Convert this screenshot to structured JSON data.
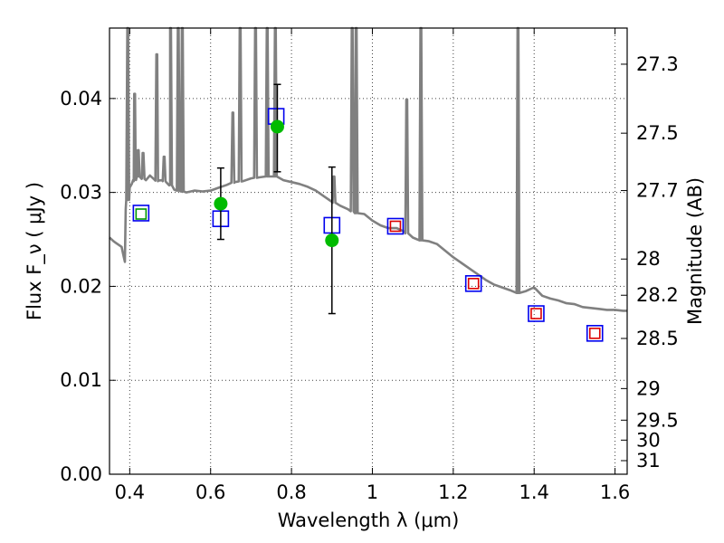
{
  "chart_data": {
    "type": "scatter",
    "xlabel": "Wavelength  λ (μm)",
    "ylabel_left": "Flux  F_ν  ( μJy )",
    "ylabel_right": "Magnitude (AB)",
    "xlim": [
      0.35,
      1.63
    ],
    "ylim": [
      0.0,
      0.0475
    ],
    "x_ticks": [
      0.4,
      0.6,
      0.8,
      1.0,
      1.2,
      1.4,
      1.6
    ],
    "x_tick_labels": [
      "0.4",
      "0.6",
      "0.8",
      "1",
      "1.2",
      "1.4",
      "1.6"
    ],
    "y_ticks": [
      0.0,
      0.01,
      0.02,
      0.03,
      0.04
    ],
    "y_tick_labels": [
      "0.00",
      "0.01",
      "0.02",
      "0.03",
      "0.04"
    ],
    "right_ticks": [
      {
        "label": "27.3",
        "value": 27.3
      },
      {
        "label": "27.5",
        "value": 27.5
      },
      {
        "label": "27.7",
        "value": 27.7
      },
      {
        "label": "28",
        "value": 28.0
      },
      {
        "label": "28.2",
        "value": 28.2
      },
      {
        "label": "28.5",
        "value": 28.5
      },
      {
        "label": "29",
        "value": 29.0
      },
      {
        "label": "29.5",
        "value": 29.5
      },
      {
        "label": "30",
        "value": 30.0
      },
      {
        "label": "31",
        "value": 31.0
      }
    ],
    "grid": true,
    "colors": {
      "model": "#808080",
      "observed": "#00bb00",
      "blue_box": "#0000ee",
      "green_box": "#009900",
      "red_box": "#dd0000",
      "errorbar": "#000000"
    },
    "series": [
      {
        "kind": "model_spectrum",
        "x": [
          0.35,
          0.36,
          0.37,
          0.38,
          0.385,
          0.388,
          0.39,
          0.395,
          0.4,
          0.405,
          0.41,
          0.415,
          0.42,
          0.43,
          0.44,
          0.45,
          0.46,
          0.47,
          0.48,
          0.49,
          0.5,
          0.51,
          0.52,
          0.53,
          0.54,
          0.55,
          0.56,
          0.58,
          0.6,
          0.62,
          0.64,
          0.66,
          0.68,
          0.7,
          0.72,
          0.74,
          0.76,
          0.78,
          0.8,
          0.82,
          0.84,
          0.86,
          0.88,
          0.9,
          0.92,
          0.94,
          0.96,
          0.98,
          1.0,
          1.02,
          1.04,
          1.06,
          1.08,
          1.1,
          1.12,
          1.14,
          1.16,
          1.18,
          1.2,
          1.22,
          1.24,
          1.26,
          1.28,
          1.3,
          1.32,
          1.34,
          1.36,
          1.38,
          1.4,
          1.42,
          1.44,
          1.46,
          1.48,
          1.5,
          1.52,
          1.54,
          1.56,
          1.58,
          1.6,
          1.62,
          1.63
        ],
        "y": [
          0.0252,
          0.0248,
          0.0245,
          0.0242,
          0.0232,
          0.0226,
          0.0282,
          0.0292,
          0.0305,
          0.0309,
          0.0312,
          0.0315,
          0.0317,
          0.0315,
          0.0313,
          0.0318,
          0.0314,
          0.0312,
          0.0313,
          0.0311,
          0.0308,
          0.0303,
          0.0302,
          0.0301,
          0.03,
          0.0301,
          0.0302,
          0.0301,
          0.0302,
          0.0305,
          0.0308,
          0.0311,
          0.0312,
          0.0315,
          0.0316,
          0.0317,
          0.0317,
          0.0313,
          0.0311,
          0.0309,
          0.0306,
          0.0302,
          0.0296,
          0.029,
          0.0286,
          0.0282,
          0.0278,
          0.0277,
          0.027,
          0.0265,
          0.0262,
          0.0262,
          0.0258,
          0.0252,
          0.0249,
          0.0248,
          0.0245,
          0.0238,
          0.0231,
          0.0225,
          0.0219,
          0.0213,
          0.0207,
          0.0202,
          0.0199,
          0.0196,
          0.0193,
          0.0195,
          0.0199,
          0.019,
          0.0187,
          0.0185,
          0.0182,
          0.0181,
          0.0178,
          0.0177,
          0.0176,
          0.0175,
          0.0175,
          0.0174,
          0.0174
        ]
      },
      {
        "kind": "model_spectrum_lines",
        "lines": [
          {
            "x": 0.395,
            "peak": 0.048
          },
          {
            "x": 0.412,
            "peak": 0.0405
          },
          {
            "x": 0.421,
            "peak": 0.0345
          },
          {
            "x": 0.433,
            "peak": 0.0342
          },
          {
            "x": 0.467,
            "peak": 0.0447
          },
          {
            "x": 0.485,
            "peak": 0.0338
          },
          {
            "x": 0.501,
            "peak": 0.048
          },
          {
            "x": 0.52,
            "peak": 0.048
          },
          {
            "x": 0.53,
            "peak": 0.048
          },
          {
            "x": 0.655,
            "peak": 0.0385
          },
          {
            "x": 0.673,
            "peak": 0.048
          },
          {
            "x": 0.711,
            "peak": 0.048
          },
          {
            "x": 0.74,
            "peak": 0.048
          },
          {
            "x": 0.76,
            "peak": 0.048
          },
          {
            "x": 0.905,
            "peak": 0.0317
          },
          {
            "x": 0.95,
            "peak": 0.048
          },
          {
            "x": 0.96,
            "peak": 0.048
          },
          {
            "x": 1.085,
            "peak": 0.0399
          },
          {
            "x": 1.12,
            "peak": 0.048
          },
          {
            "x": 1.36,
            "peak": 0.048
          }
        ]
      },
      {
        "kind": "blue_boxes",
        "x": [
          0.428,
          0.625,
          0.762,
          0.9,
          1.057,
          1.25,
          1.405,
          1.55
        ],
        "y": [
          0.0278,
          0.0272,
          0.0381,
          0.0265,
          0.0264,
          0.0203,
          0.0171,
          0.015
        ]
      },
      {
        "kind": "green_boxes",
        "x": [
          0.428
        ],
        "y": [
          0.0277
        ]
      },
      {
        "kind": "red_boxes",
        "x": [
          1.057,
          1.25,
          1.405,
          1.55
        ],
        "y": [
          0.0264,
          0.0203,
          0.0171,
          0.015
        ]
      },
      {
        "kind": "observed_points",
        "x": [
          0.625,
          0.765,
          0.9
        ],
        "y": [
          0.0288,
          0.037,
          0.0249
        ],
        "yerr_low": [
          0.0038,
          0.0048,
          0.0078
        ],
        "yerr_high": [
          0.0038,
          0.0045,
          0.0078
        ]
      }
    ]
  }
}
